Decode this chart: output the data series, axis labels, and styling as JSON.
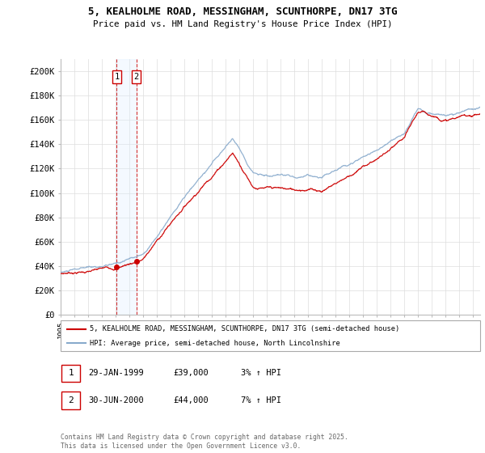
{
  "title_line1": "5, KEALHOLME ROAD, MESSINGHAM, SCUNTHORPE, DN17 3TG",
  "title_line2": "Price paid vs. HM Land Registry's House Price Index (HPI)",
  "ylim": [
    0,
    210000
  ],
  "yticks": [
    0,
    20000,
    40000,
    60000,
    80000,
    100000,
    120000,
    140000,
    160000,
    180000,
    200000
  ],
  "ytick_labels": [
    "£0",
    "£20K",
    "£40K",
    "£60K",
    "£80K",
    "£100K",
    "£120K",
    "£140K",
    "£160K",
    "£180K",
    "£200K"
  ],
  "sale1_date": 1999.08,
  "sale1_price": 39000,
  "sale2_date": 2000.5,
  "sale2_price": 44000,
  "line_color_price": "#cc0000",
  "line_color_hpi": "#88aacc",
  "background_color": "#ffffff",
  "grid_color": "#dddddd",
  "legend_label1": "5, KEALHOLME ROAD, MESSINGHAM, SCUNTHORPE, DN17 3TG (semi-detached house)",
  "legend_label2": "HPI: Average price, semi-detached house, North Lincolnshire",
  "table_row1": [
    "1",
    "29-JAN-1999",
    "£39,000",
    "3% ↑ HPI"
  ],
  "table_row2": [
    "2",
    "30-JUN-2000",
    "£44,000",
    "7% ↑ HPI"
  ],
  "footnote": "Contains HM Land Registry data © Crown copyright and database right 2025.\nThis data is licensed under the Open Government Licence v3.0.",
  "xmin": 1995,
  "xmax": 2025.5,
  "span_color": "#ddeeff"
}
